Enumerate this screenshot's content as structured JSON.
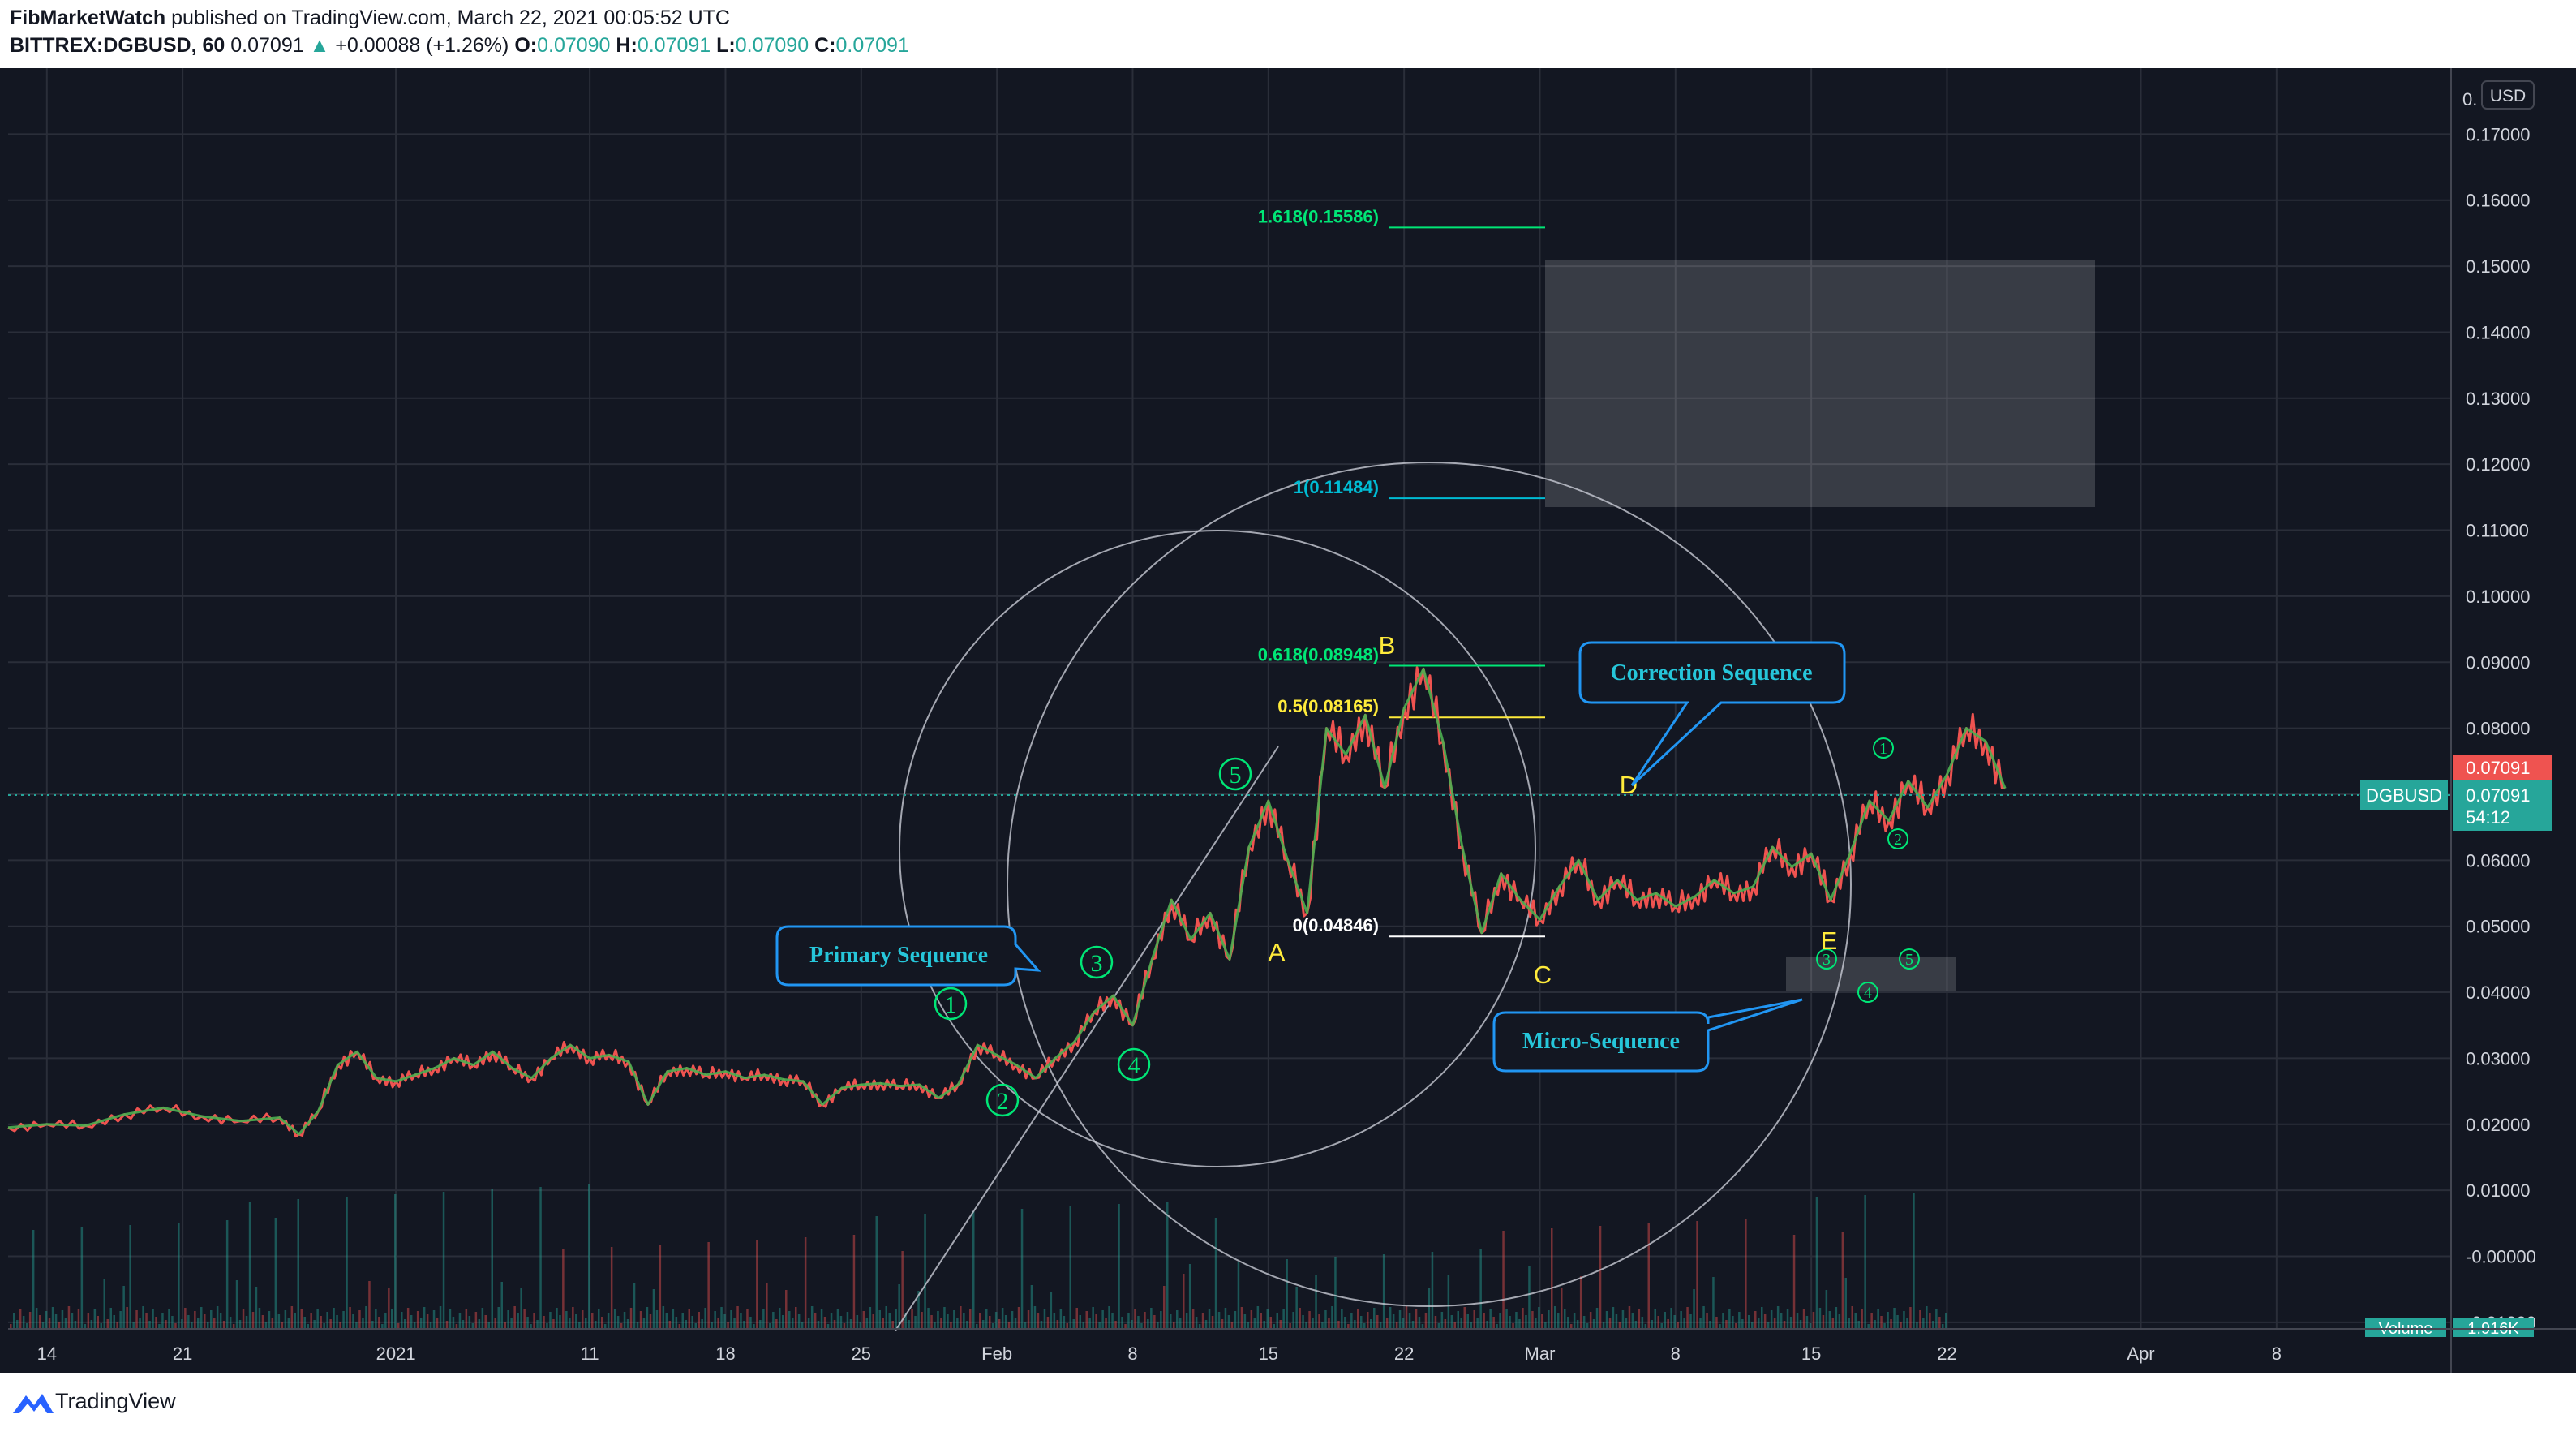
{
  "header": {
    "author": "FibMarketWatch",
    "published_text": "published on TradingView.com, March 22, 2021 00:05:52 UTC",
    "symbol_interval": "BITTREX:DGBUSD, 60",
    "last_price": "0.07091",
    "change_arrow": "▲",
    "change": "+0.00088 (+1.26%)",
    "open_label": "O:",
    "open": "0.07090",
    "high_label": "H:",
    "high": "0.07091",
    "low_label": "L:",
    "low": "0.07090",
    "close_label": "C:",
    "close": "0.07091"
  },
  "footer": {
    "brand": "TradingView",
    "icon": "tradingview-logo-icon"
  },
  "price_axis": {
    "currency_badge": "USD",
    "top_label": "0.",
    "symbol_tag": "DGBUSD",
    "last_price_red": "0.07091",
    "last_price_teal": "0.07091",
    "countdown": "54:12",
    "volume_tag": "Volume",
    "volume_value": "1.916K"
  },
  "colors": {
    "background": "#131722",
    "grid": "#2a2e39",
    "teal": "#26a69a",
    "red": "#ef5350",
    "green_label": "#00e676",
    "yellow_label": "#ffeb3b",
    "cyan_label": "#00bcd4",
    "callout_border": "#2196f3",
    "callout_text": "#26c6da"
  },
  "chart_data": {
    "type": "line",
    "title": "",
    "xlabel": "",
    "ylabel": "",
    "ylim": [
      -0.011,
      0.18
    ],
    "y_ticks": [
      "0.17000",
      "0.16000",
      "0.15000",
      "0.14000",
      "0.13000",
      "0.12000",
      "0.11000",
      "0.10000",
      "0.09000",
      "0.08000",
      "0.07000",
      "0.06000",
      "0.05000",
      "0.04000",
      "0.03000",
      "0.02000",
      "0.01000",
      "-0.00000",
      "-0.01000"
    ],
    "y_tick_values": [
      0.17,
      0.16,
      0.15,
      0.14,
      0.13,
      0.12,
      0.11,
      0.1,
      0.09,
      0.08,
      0.07,
      0.06,
      0.05,
      0.04,
      0.03,
      0.02,
      0.01,
      0,
      -0.01
    ],
    "x_ticks": [
      {
        "label": "14",
        "day": 0
      },
      {
        "label": "21",
        "day": 7
      },
      {
        "label": "2021",
        "day": 18
      },
      {
        "label": "11",
        "day": 28
      },
      {
        "label": "18",
        "day": 35
      },
      {
        "label": "25",
        "day": 42
      },
      {
        "label": "Feb",
        "day": 49
      },
      {
        "label": "8",
        "day": 56
      },
      {
        "label": "15",
        "day": 63
      },
      {
        "label": "22",
        "day": 70
      },
      {
        "label": "Mar",
        "day": 77
      },
      {
        "label": "8",
        "day": 84
      },
      {
        "label": "15",
        "day": 91
      },
      {
        "label": "22",
        "day": 98
      },
      {
        "label": "Apr",
        "day": 108
      },
      {
        "label": "8",
        "day": 115
      }
    ],
    "x_domain_days": [
      -2,
      124
    ],
    "series": [
      {
        "points": [
          [
            -2,
            0.0195
          ],
          [
            0,
            0.02
          ],
          [
            2,
            0.0198
          ],
          [
            4,
            0.0215
          ],
          [
            6,
            0.0225
          ],
          [
            8,
            0.0212
          ],
          [
            10,
            0.0205
          ],
          [
            12,
            0.021
          ],
          [
            13,
            0.0185
          ],
          [
            14,
            0.022
          ],
          [
            15,
            0.029
          ],
          [
            16,
            0.031
          ],
          [
            17,
            0.027
          ],
          [
            18,
            0.0265
          ],
          [
            19,
            0.0275
          ],
          [
            20,
            0.0285
          ],
          [
            21,
            0.03
          ],
          [
            22,
            0.029
          ],
          [
            23,
            0.031
          ],
          [
            24,
            0.0285
          ],
          [
            25,
            0.027
          ],
          [
            26,
            0.03
          ],
          [
            27,
            0.032
          ],
          [
            28,
            0.03
          ],
          [
            29,
            0.0305
          ],
          [
            30,
            0.0295
          ],
          [
            31,
            0.023
          ],
          [
            32,
            0.028
          ],
          [
            33,
            0.0285
          ],
          [
            34,
            0.0275
          ],
          [
            35,
            0.028
          ],
          [
            36,
            0.027
          ],
          [
            37,
            0.0275
          ],
          [
            38,
            0.0268
          ],
          [
            39,
            0.0265
          ],
          [
            40,
            0.023
          ],
          [
            41,
            0.0255
          ],
          [
            42,
            0.026
          ],
          [
            43,
            0.0262
          ],
          [
            44,
            0.0258
          ],
          [
            45,
            0.026
          ],
          [
            46,
            0.024
          ],
          [
            47,
            0.026
          ],
          [
            48,
            0.032
          ],
          [
            49,
            0.0305
          ],
          [
            50,
            0.029
          ],
          [
            51,
            0.027
          ],
          [
            52,
            0.03
          ],
          [
            53,
            0.0325
          ],
          [
            54,
            0.037
          ],
          [
            55,
            0.0395
          ],
          [
            56,
            0.035
          ],
          [
            57,
            0.045
          ],
          [
            58,
            0.054
          ],
          [
            59,
            0.048
          ],
          [
            60,
            0.052
          ],
          [
            61,
            0.045
          ],
          [
            62,
            0.062
          ],
          [
            63,
            0.069
          ],
          [
            64,
            0.06
          ],
          [
            65,
            0.052
          ],
          [
            66,
            0.08
          ],
          [
            67,
            0.076
          ],
          [
            68,
            0.082
          ],
          [
            69,
            0.071
          ],
          [
            70,
            0.083
          ],
          [
            71,
            0.089
          ],
          [
            72,
            0.078
          ],
          [
            73,
            0.062
          ],
          [
            74,
            0.049
          ],
          [
            75,
            0.058
          ],
          [
            76,
            0.054
          ],
          [
            77,
            0.051
          ],
          [
            78,
            0.056
          ],
          [
            79,
            0.06
          ],
          [
            80,
            0.054
          ],
          [
            81,
            0.057
          ],
          [
            82,
            0.054
          ],
          [
            83,
            0.055
          ],
          [
            84,
            0.053
          ],
          [
            85,
            0.0545
          ],
          [
            86,
            0.057
          ],
          [
            87,
            0.055
          ],
          [
            88,
            0.056
          ],
          [
            89,
            0.062
          ],
          [
            90,
            0.059
          ],
          [
            91,
            0.061
          ],
          [
            92,
            0.054
          ],
          [
            93,
            0.061
          ],
          [
            94,
            0.069
          ],
          [
            95,
            0.066
          ],
          [
            96,
            0.072
          ],
          [
            97,
            0.068
          ],
          [
            98,
            0.073
          ],
          [
            99,
            0.08
          ],
          [
            100,
            0.078
          ],
          [
            101,
            0.0709
          ]
        ]
      }
    ],
    "annotations": {
      "fib_levels": [
        {
          "label": "1.618(0.15586)",
          "value": 0.15586,
          "color": "#00e676"
        },
        {
          "label": "1(0.11484)",
          "value": 0.11484,
          "color": "#00bcd4"
        },
        {
          "label": "0.618(0.08948)",
          "value": 0.08948,
          "color": "#00e676"
        },
        {
          "label": "0.5(0.08165)",
          "value": 0.08165,
          "color": "#ffeb3b"
        },
        {
          "label": "0(0.04846)",
          "value": 0.04846,
          "color": "#ffffff"
        }
      ],
      "wave_labels_yellow": [
        "A",
        "B",
        "C",
        "D",
        "E"
      ],
      "wave_labels_green_circled": [
        "1",
        "2",
        "3",
        "4",
        "5"
      ],
      "micro_wave_labels": [
        "1",
        "2",
        "3",
        "4",
        "5"
      ],
      "callouts": [
        "Primary Sequence",
        "Correction Sequence",
        "Micro-Sequence"
      ]
    }
  }
}
